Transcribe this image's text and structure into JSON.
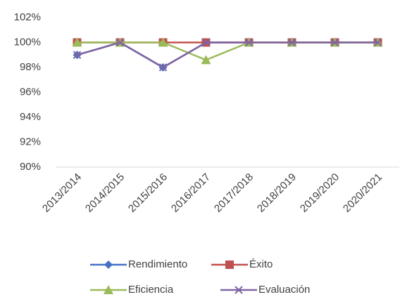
{
  "chart_data": {
    "type": "line",
    "categories": [
      "2013/2014",
      "2014/2015",
      "2015/2016",
      "2016/2017",
      "2017/2018",
      "2018/2019",
      "2019/2020",
      "2020/2021"
    ],
    "series": [
      {
        "name": "Rendimiento",
        "color": "#4472c4",
        "marker": "diamond",
        "values": [
          99,
          100,
          98,
          100,
          100,
          100,
          100,
          100
        ]
      },
      {
        "name": "Éxito",
        "color": "#c0504d",
        "marker": "square",
        "values": [
          100,
          100,
          100,
          100,
          100,
          100,
          100,
          100
        ]
      },
      {
        "name": "Eficiencia",
        "color": "#9bbb59",
        "marker": "triangle",
        "values": [
          100,
          100,
          100,
          98.6,
          100,
          100,
          100,
          100
        ]
      },
      {
        "name": "Evaluación",
        "color": "#8064a2",
        "marker": "x",
        "values": [
          99,
          100,
          98,
          100,
          100,
          100,
          100,
          100
        ]
      }
    ],
    "ylim": [
      90,
      102
    ],
    "yticks": [
      {
        "value": 90,
        "label": "90%"
      },
      {
        "value": 92,
        "label": "92%"
      },
      {
        "value": 94,
        "label": "94%"
      },
      {
        "value": 96,
        "label": "96%"
      },
      {
        "value": 98,
        "label": "98%"
      },
      {
        "value": 100,
        "label": "100%"
      },
      {
        "value": 102,
        "label": "102%"
      }
    ],
    "grid": false,
    "legend": "bottom"
  }
}
